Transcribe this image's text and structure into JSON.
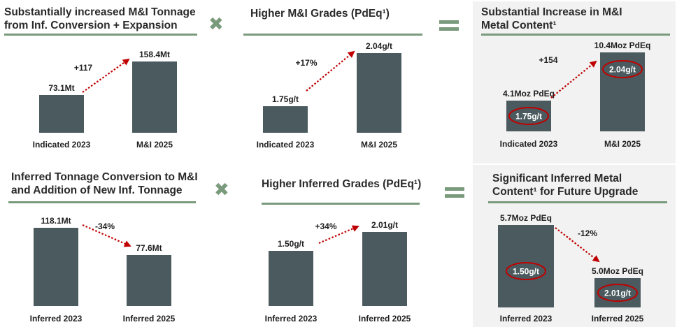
{
  "operators": {
    "times": "✖",
    "equals_icon": "equals-icon"
  },
  "colors": {
    "bar": "#4a5a5f",
    "arrow": "#c00000",
    "rule": "#7a9a7c",
    "oval": "#c00000",
    "panel_bg": "#f1f2f1"
  },
  "panels": [
    {
      "title": "Substantially increased M&I Tonnage\nfrom Inf. Conversion + Expansion",
      "change": "+117"
    },
    {
      "title": "Higher M&I Grades (PdEq¹)",
      "change": "+17%"
    },
    {
      "title": "Substantial Increase in M&I\nMetal Content¹",
      "change": "+154"
    },
    {
      "title": "Inferred Tonnage Conversion to M&I\nand Addition of New Inf. Tonnage",
      "change": "-34%"
    },
    {
      "title": "Higher Inferred Grades (PdEq¹)",
      "change": "+34%"
    },
    {
      "title": "Significant Inferred Metal\nContent¹ for Future Upgrade",
      "change": "-12%"
    }
  ],
  "chart_data": [
    {
      "type": "bar",
      "categories": [
        "Indicated 2023",
        "M&I 2025"
      ],
      "values": [
        73.1,
        158.4
      ],
      "labels": [
        "73.1Mt",
        "158.4Mt"
      ]
    },
    {
      "type": "bar",
      "categories": [
        "Indicated 2023",
        "M&I 2025"
      ],
      "values": [
        1.75,
        2.04
      ],
      "labels": [
        "1.75g/t",
        "2.04g/t"
      ]
    },
    {
      "type": "bar",
      "categories": [
        "Indicated 2023",
        "M&I 2025"
      ],
      "values": [
        4.1,
        10.4
      ],
      "labels": [
        "4.1Moz PdEq",
        "10.4Moz PdEq"
      ],
      "inner_labels": [
        "1.75g/t",
        "2.04g/t"
      ]
    },
    {
      "type": "bar",
      "categories": [
        "Inferred 2023",
        "Inferred 2025"
      ],
      "values": [
        118.1,
        77.6
      ],
      "labels": [
        "118.1Mt",
        "77.6Mt"
      ]
    },
    {
      "type": "bar",
      "categories": [
        "Inferred 2023",
        "Inferred 2025"
      ],
      "values": [
        1.5,
        2.01
      ],
      "labels": [
        "1.50g/t",
        "2.01g/t"
      ]
    },
    {
      "type": "bar",
      "categories": [
        "Inferred 2023",
        "Inferred 2025"
      ],
      "values": [
        5.7,
        5.0
      ],
      "labels": [
        "5.7Moz PdEq",
        "5.0Moz PdEq"
      ],
      "inner_labels": [
        "1.50g/t",
        "2.01g/t"
      ]
    }
  ]
}
